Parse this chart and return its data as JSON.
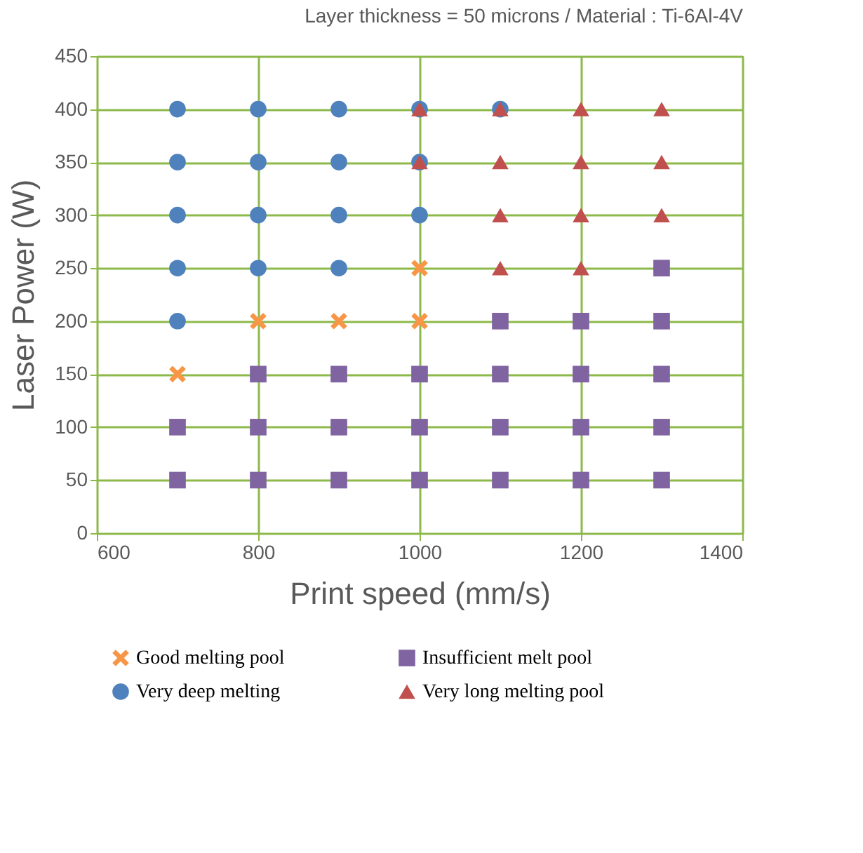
{
  "chart_data": {
    "type": "scatter",
    "title": "Layer thickness = 50 microns / Material : Ti-6Al-4V",
    "xlabel": "Print speed (mm/s)",
    "ylabel": "Laser Power (W)",
    "xlim": [
      600,
      1400
    ],
    "xticks": [
      600,
      800,
      1000,
      1200,
      1400
    ],
    "ylim": [
      0,
      450
    ],
    "yticks": [
      0,
      50,
      100,
      150,
      200,
      250,
      300,
      350,
      400,
      450
    ],
    "grid": true,
    "legend": "bottom",
    "series": [
      {
        "name": "Good melting pool",
        "color": "#f79646",
        "marker": "cross",
        "x": [
          700,
          800,
          900,
          1000,
          1000
        ],
        "values": [
          150,
          200,
          200,
          200,
          250
        ]
      },
      {
        "name": "Insufficient melt pool",
        "color": "#8064a2",
        "marker": "square",
        "x": [
          700,
          700,
          800,
          800,
          800,
          900,
          900,
          900,
          1000,
          1000,
          1000,
          1100,
          1100,
          1100,
          1100,
          1200,
          1200,
          1200,
          1200,
          1300,
          1300,
          1300,
          1300,
          1300
        ],
        "values": [
          50,
          100,
          50,
          100,
          150,
          50,
          100,
          150,
          50,
          100,
          150,
          50,
          100,
          150,
          200,
          50,
          100,
          150,
          200,
          50,
          100,
          150,
          200,
          250
        ]
      },
      {
        "name": "Very deep melting",
        "color": "#4f81bd",
        "marker": "circle",
        "x": [
          700,
          700,
          700,
          700,
          700,
          800,
          800,
          800,
          800,
          900,
          900,
          900,
          900,
          1000,
          1000,
          1000,
          1100
        ],
        "values": [
          200,
          250,
          300,
          350,
          400,
          250,
          300,
          350,
          400,
          250,
          300,
          350,
          400,
          300,
          350,
          400,
          400
        ]
      },
      {
        "name": "Very long melting pool",
        "color": "#c0504d",
        "marker": "triangle",
        "x": [
          1000,
          1000,
          1100,
          1100,
          1100,
          1100,
          1200,
          1200,
          1200,
          1200,
          1300,
          1300,
          1300
        ],
        "values": [
          350,
          400,
          250,
          300,
          350,
          400,
          250,
          300,
          350,
          400,
          300,
          350,
          400
        ]
      }
    ]
  }
}
